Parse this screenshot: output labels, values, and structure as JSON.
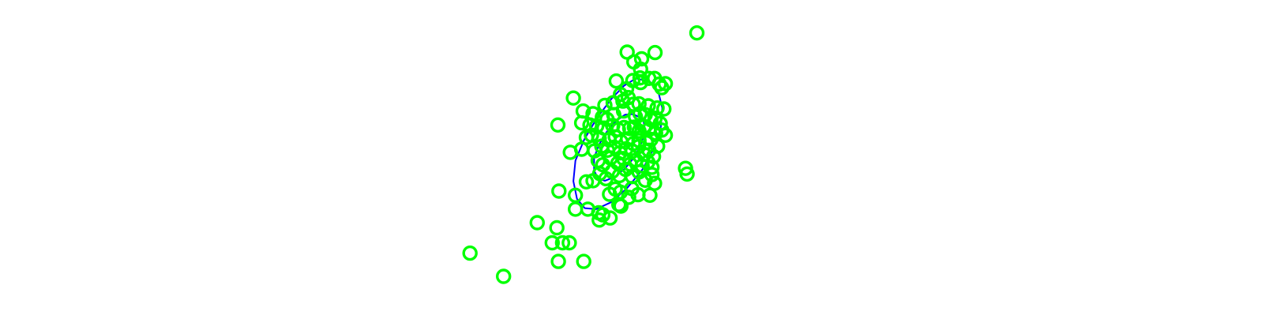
{
  "colors": {
    "point": "#00ff00",
    "contour": "#0000ff",
    "background": "#ffffff"
  },
  "chart_data": {
    "type": "scatter",
    "title": "",
    "xlabel": "",
    "ylabel": "",
    "grid": false,
    "xlim": [
      -3.0,
      2.5
    ],
    "ylim": [
      -3.0,
      2.5
    ],
    "points": [
      [
        2.05,
        2.29
      ],
      [
        1.24,
        1.91
      ],
      [
        0.98,
        1.79
      ],
      [
        0.7,
        1.92
      ],
      [
        0.83,
        1.73
      ],
      [
        0.96,
        1.59
      ],
      [
        1.12,
        1.41
      ],
      [
        1.23,
        1.41
      ],
      [
        1.32,
        1.3
      ],
      [
        0.49,
        1.36
      ],
      [
        0.81,
        1.37
      ],
      [
        0.69,
        1.21
      ],
      [
        0.95,
        1.42
      ],
      [
        0.96,
        1.33
      ],
      [
        1.44,
        1.31
      ],
      [
        1.37,
        1.23
      ],
      [
        -0.34,
        1.03
      ],
      [
        0.57,
        1.1
      ],
      [
        0.27,
        0.89
      ],
      [
        0.43,
        0.94
      ],
      [
        0.62,
        0.97
      ],
      [
        0.72,
        1.04
      ],
      [
        0.82,
        0.91
      ],
      [
        0.93,
        0.92
      ],
      [
        1.11,
        0.88
      ],
      [
        1.28,
        0.84
      ],
      [
        1.41,
        0.82
      ],
      [
        -0.15,
        0.78
      ],
      [
        0.04,
        0.73
      ],
      [
        0.22,
        0.66
      ],
      [
        0.31,
        0.62
      ],
      [
        0.44,
        0.71
      ],
      [
        0.63,
        0.78
      ],
      [
        0.86,
        0.67
      ],
      [
        0.95,
        0.73
      ],
      [
        1.05,
        0.71
      ],
      [
        1.16,
        0.61
      ],
      [
        1.24,
        0.64
      ],
      [
        1.34,
        0.54
      ],
      [
        -0.64,
        0.51
      ],
      [
        -0.18,
        0.55
      ],
      [
        -0.02,
        0.51
      ],
      [
        0.11,
        0.49
      ],
      [
        0.25,
        0.45
      ],
      [
        0.42,
        0.5
      ],
      [
        0.53,
        0.42
      ],
      [
        0.64,
        0.46
      ],
      [
        0.75,
        0.44
      ],
      [
        0.84,
        0.47
      ],
      [
        0.93,
        0.39
      ],
      [
        1.03,
        0.48
      ],
      [
        1.12,
        0.42
      ],
      [
        1.25,
        0.35
      ],
      [
        1.37,
        0.41
      ],
      [
        1.44,
        0.31
      ],
      [
        -0.09,
        0.27
      ],
      [
        0.01,
        0.31
      ],
      [
        0.16,
        0.25
      ],
      [
        0.35,
        0.22
      ],
      [
        0.47,
        0.28
      ],
      [
        0.58,
        0.19
      ],
      [
        0.71,
        0.24
      ],
      [
        0.82,
        0.15
      ],
      [
        0.93,
        0.21
      ],
      [
        1.07,
        0.17
      ],
      [
        1.16,
        0.23
      ],
      [
        1.29,
        0.1
      ],
      [
        -0.4,
        -0.02
      ],
      [
        -0.18,
        0.04
      ],
      [
        0.07,
        0.01
      ],
      [
        0.21,
        0.1
      ],
      [
        0.32,
        0.02
      ],
      [
        0.45,
        0.08
      ],
      [
        0.56,
        -0.03
      ],
      [
        0.68,
        0.05
      ],
      [
        0.8,
        0.0
      ],
      [
        0.92,
        0.09
      ],
      [
        1.03,
        -0.06
      ],
      [
        1.12,
        0.02
      ],
      [
        1.21,
        -0.1
      ],
      [
        1.18,
        -0.31
      ],
      [
        0.14,
        -0.18
      ],
      [
        0.23,
        -0.26
      ],
      [
        0.38,
        -0.13
      ],
      [
        0.52,
        -0.23
      ],
      [
        0.63,
        -0.14
      ],
      [
        0.76,
        -0.25
      ],
      [
        0.87,
        -0.17
      ],
      [
        0.99,
        -0.28
      ],
      [
        1.1,
        -0.21
      ],
      [
        1.83,
        -0.33
      ],
      [
        1.86,
        -0.44
      ],
      [
        -0.09,
        -0.59
      ],
      [
        0.04,
        -0.57
      ],
      [
        0.17,
        -0.43
      ],
      [
        0.29,
        -0.53
      ],
      [
        0.41,
        -0.39
      ],
      [
        0.55,
        -0.47
      ],
      [
        0.67,
        -0.35
      ],
      [
        0.8,
        -0.49
      ],
      [
        0.93,
        -0.4
      ],
      [
        1.05,
        -0.56
      ],
      [
        1.18,
        -0.45
      ],
      [
        1.23,
        -0.62
      ],
      [
        -0.62,
        -0.77
      ],
      [
        -0.3,
        -0.85
      ],
      [
        0.36,
        -0.83
      ],
      [
        0.57,
        -0.79
      ],
      [
        0.47,
        -0.73
      ],
      [
        0.73,
        -0.89
      ],
      [
        0.79,
        -0.72
      ],
      [
        0.91,
        -0.84
      ],
      [
        1.14,
        -0.85
      ],
      [
        -0.3,
        -1.12
      ],
      [
        -0.06,
        -1.12
      ],
      [
        0.15,
        -1.19
      ],
      [
        0.23,
        -1.23
      ],
      [
        0.37,
        -1.29
      ],
      [
        0.54,
        -1.03
      ],
      [
        0.58,
        -1.06
      ],
      [
        0.16,
        -1.33
      ],
      [
        -1.04,
        -1.38
      ],
      [
        -0.66,
        -1.48
      ],
      [
        -0.55,
        -1.77
      ],
      [
        -0.42,
        -1.77
      ],
      [
        -0.75,
        -1.77
      ],
      [
        -2.34,
        -1.97
      ],
      [
        -0.14,
        -2.13
      ],
      [
        -0.63,
        -2.13
      ],
      [
        -1.69,
        -2.42
      ]
    ],
    "contours": [
      {
        "name": "",
        "path": [
          [
            0.87,
            1.41
          ],
          [
            1.14,
            1.35
          ],
          [
            1.3,
            1.16
          ],
          [
            1.38,
            0.84
          ],
          [
            1.35,
            0.45
          ],
          [
            1.21,
            0.04
          ],
          [
            0.99,
            -0.36
          ],
          [
            0.7,
            -0.71
          ],
          [
            0.4,
            -0.98
          ],
          [
            0.1,
            -1.12
          ],
          [
            -0.12,
            -1.1
          ],
          [
            -0.27,
            -0.92
          ],
          [
            -0.34,
            -0.58
          ],
          [
            -0.3,
            -0.18
          ],
          [
            -0.13,
            0.23
          ],
          [
            0.12,
            0.65
          ],
          [
            0.4,
            1.02
          ],
          [
            0.64,
            1.27
          ],
          [
            0.87,
            1.41
          ]
        ]
      },
      {
        "name": "",
        "path": [
          [
            0.82,
            0.72
          ],
          [
            1.01,
            0.62
          ],
          [
            1.05,
            0.4
          ],
          [
            0.97,
            0.15
          ],
          [
            0.85,
            -0.1
          ],
          [
            0.66,
            -0.33
          ],
          [
            0.45,
            -0.5
          ],
          [
            0.27,
            -0.57
          ],
          [
            0.14,
            -0.53
          ],
          [
            0.06,
            -0.37
          ],
          [
            0.06,
            -0.13
          ],
          [
            0.15,
            0.12
          ],
          [
            0.3,
            0.37
          ],
          [
            0.49,
            0.59
          ],
          [
            0.66,
            0.71
          ],
          [
            0.82,
            0.72
          ]
        ]
      }
    ]
  }
}
